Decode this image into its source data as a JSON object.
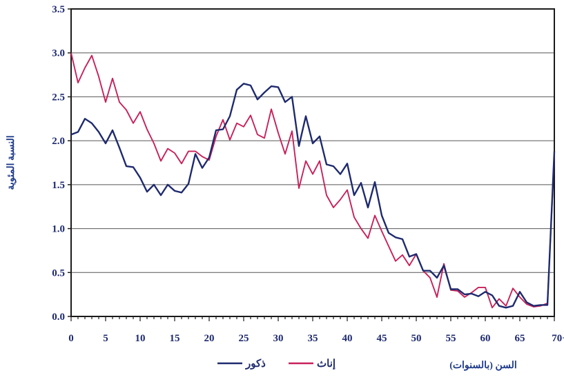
{
  "chart_data": {
    "type": "line",
    "ylabel": "النسبة المئوية",
    "xlabel": "السن (بالسنوات)",
    "ylim": [
      0,
      3.5
    ],
    "xlim": [
      0,
      70
    ],
    "x_ticks": [
      0,
      5,
      10,
      15,
      20,
      25,
      30,
      35,
      40,
      45,
      50,
      55,
      60,
      65,
      70
    ],
    "x_tick_labels": [
      "0",
      "5",
      "10",
      "15",
      "20",
      "25",
      "30",
      "35",
      "40",
      "45",
      "50",
      "55",
      "60",
      "65",
      "70+"
    ],
    "y_ticks": [
      0,
      0.5,
      1.0,
      1.5,
      2.0,
      2.5,
      3.0,
      3.5
    ],
    "y_tick_labels": [
      "0.0",
      "0.5",
      "1.0",
      "1.5",
      "2.0",
      "2.5",
      "3.0",
      "3.5"
    ],
    "grid": "horizontal",
    "legend_position": "bottom-left",
    "x": [
      0,
      1,
      2,
      3,
      4,
      5,
      6,
      7,
      8,
      9,
      10,
      11,
      12,
      13,
      14,
      15,
      16,
      17,
      18,
      19,
      20,
      21,
      22,
      23,
      24,
      25,
      26,
      27,
      28,
      29,
      30,
      31,
      32,
      33,
      34,
      35,
      36,
      37,
      38,
      39,
      40,
      41,
      42,
      43,
      44,
      45,
      46,
      47,
      48,
      49,
      50,
      51,
      52,
      53,
      54,
      55,
      56,
      57,
      58,
      59,
      60,
      61,
      62,
      63,
      64,
      65,
      66,
      67,
      68,
      69,
      70
    ],
    "series": [
      {
        "name": "ذكور",
        "color": "#1e2a6e",
        "values": [
          2.07,
          2.1,
          2.25,
          2.2,
          2.1,
          1.97,
          2.12,
          1.92,
          1.71,
          1.7,
          1.58,
          1.42,
          1.5,
          1.38,
          1.5,
          1.43,
          1.41,
          1.51,
          1.85,
          1.69,
          1.81,
          2.12,
          2.13,
          2.28,
          2.58,
          2.65,
          2.63,
          2.47,
          2.55,
          2.62,
          2.61,
          2.44,
          2.5,
          1.94,
          2.28,
          1.97,
          2.05,
          1.73,
          1.71,
          1.62,
          1.74,
          1.38,
          1.52,
          1.24,
          1.53,
          1.15,
          0.95,
          0.9,
          0.88,
          0.68,
          0.71,
          0.52,
          0.52,
          0.44,
          0.58,
          0.31,
          0.31,
          0.25,
          0.26,
          0.23,
          0.28,
          0.24,
          0.12,
          0.1,
          0.12,
          0.28,
          0.16,
          0.12,
          0.13,
          0.13,
          1.88
        ]
      },
      {
        "name": "إناث",
        "color": "#c8205a",
        "values": [
          3.0,
          2.66,
          2.83,
          2.97,
          2.73,
          2.44,
          2.71,
          2.44,
          2.35,
          2.2,
          2.33,
          2.13,
          1.97,
          1.77,
          1.91,
          1.86,
          1.74,
          1.88,
          1.88,
          1.82,
          1.78,
          2.05,
          2.24,
          2.01,
          2.2,
          2.16,
          2.29,
          2.07,
          2.03,
          2.36,
          2.09,
          1.85,
          2.11,
          1.46,
          1.77,
          1.62,
          1.77,
          1.38,
          1.24,
          1.33,
          1.44,
          1.13,
          1.0,
          0.89,
          1.15,
          0.97,
          0.8,
          0.63,
          0.7,
          0.58,
          0.71,
          0.52,
          0.44,
          0.22,
          0.6,
          0.3,
          0.29,
          0.22,
          0.27,
          0.33,
          0.33,
          0.1,
          0.2,
          0.12,
          0.32,
          0.22,
          0.14,
          0.11,
          0.12,
          0.15,
          1.83
        ]
      }
    ]
  }
}
